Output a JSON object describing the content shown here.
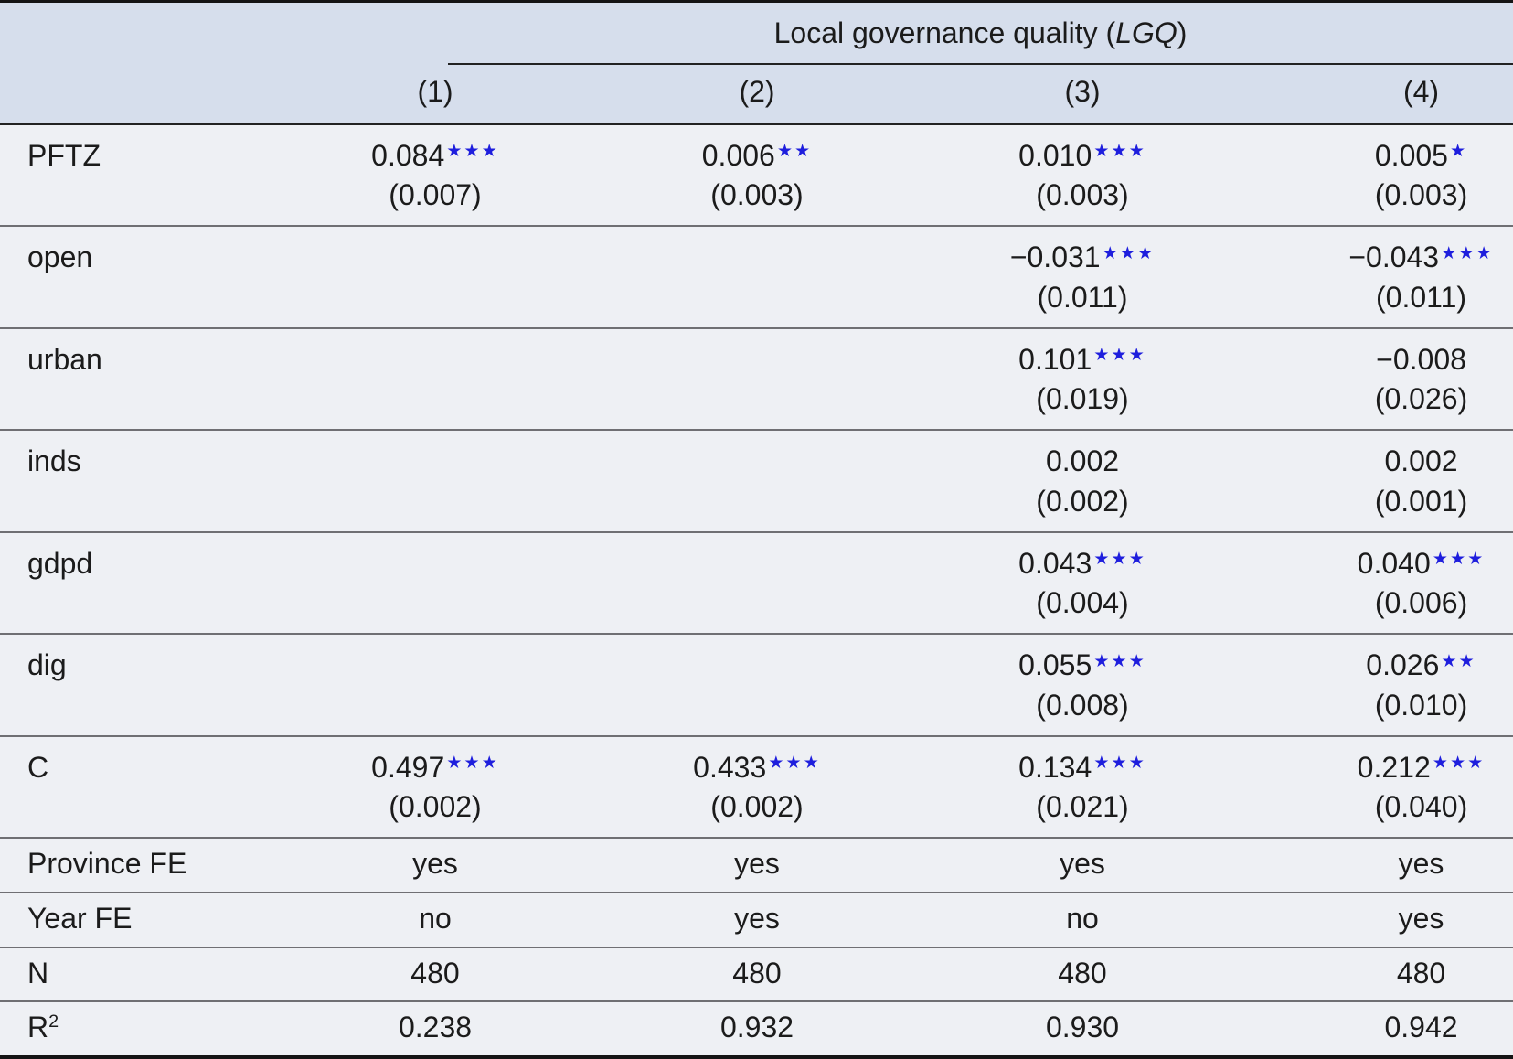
{
  "colors": {
    "header_bg": "#d6deec",
    "body_bg": "#eef0f4",
    "text": "#1b1b1b",
    "stars_blue": "#1e1edd",
    "row_line": "#6f6f73",
    "frame": "#141414"
  },
  "table": {
    "group_title": {
      "prefix": "Local governance quality (",
      "italic": "LGQ",
      "suffix": ")"
    },
    "columns": [
      "(1)",
      "(2)",
      "(3)",
      "(4)"
    ],
    "rows": [
      {
        "label": "PFTZ",
        "cells": [
          {
            "value": "0.084",
            "stars": "★★★",
            "se": "(0.007)"
          },
          {
            "value": "0.006",
            "stars": "★★",
            "se": "(0.003)"
          },
          {
            "value": "0.010",
            "stars": "★★★",
            "se": "(0.003)"
          },
          {
            "value": "0.005",
            "stars": "★",
            "se": "(0.003)"
          }
        ]
      },
      {
        "label": "open",
        "cells": [
          null,
          null,
          {
            "value": "−0.031",
            "stars": "★★★",
            "se": "(0.011)"
          },
          {
            "value": "−0.043",
            "stars": "★★★",
            "se": "(0.011)"
          }
        ]
      },
      {
        "label": "urban",
        "cells": [
          null,
          null,
          {
            "value": "0.101",
            "stars": "★★★",
            "se": "(0.019)"
          },
          {
            "value": "−0.008",
            "stars": "",
            "se": "(0.026)"
          }
        ]
      },
      {
        "label": "inds",
        "cells": [
          null,
          null,
          {
            "value": "0.002",
            "stars": "",
            "se": "(0.002)"
          },
          {
            "value": "0.002",
            "stars": "",
            "se": "(0.001)"
          }
        ]
      },
      {
        "label": "gdpd",
        "cells": [
          null,
          null,
          {
            "value": "0.043",
            "stars": "★★★",
            "se": "(0.004)"
          },
          {
            "value": "0.040",
            "stars": "★★★",
            "se": "(0.006)"
          }
        ]
      },
      {
        "label": "dig",
        "cells": [
          null,
          null,
          {
            "value": "0.055",
            "stars": "★★★",
            "se": "(0.008)"
          },
          {
            "value": "0.026",
            "stars": "★★",
            "se": "(0.010)"
          }
        ]
      },
      {
        "label": "C",
        "cells": [
          {
            "value": "0.497",
            "stars": "★★★",
            "se": "(0.002)"
          },
          {
            "value": "0.433",
            "stars": "★★★",
            "se": "(0.002)"
          },
          {
            "value": "0.134",
            "stars": "★★★",
            "se": "(0.021)"
          },
          {
            "value": "0.212",
            "stars": "★★★",
            "se": "(0.040)"
          }
        ]
      }
    ],
    "meta_rows": [
      {
        "label": "Province FE",
        "values": [
          "yes",
          "yes",
          "yes",
          "yes"
        ]
      },
      {
        "label": "Year FE",
        "values": [
          "no",
          "yes",
          "no",
          "yes"
        ]
      },
      {
        "label": "N",
        "values": [
          "480",
          "480",
          "480",
          "480"
        ]
      },
      {
        "label": "R",
        "label_sup": "2",
        "values": [
          "0.238",
          "0.932",
          "0.930",
          "0.942"
        ]
      }
    ]
  }
}
